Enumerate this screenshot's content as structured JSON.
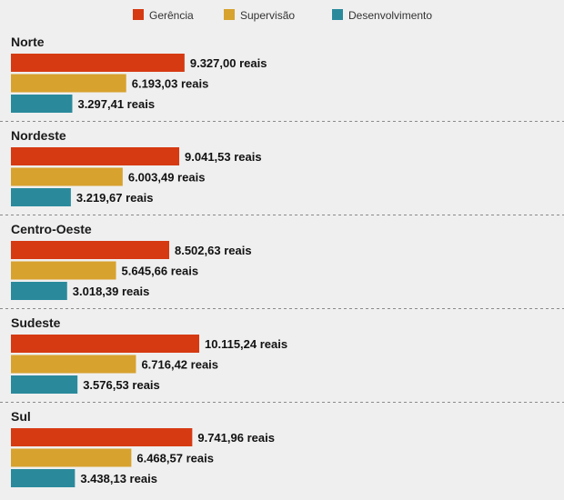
{
  "chart_data": {
    "type": "bar",
    "orientation": "horizontal",
    "title": "",
    "legend_position": "top",
    "unit_suffix": "reais",
    "series": [
      {
        "name": "Gerência",
        "color": "#d63a12"
      },
      {
        "name": "Supervisão",
        "color": "#d7a22e"
      },
      {
        "name": "Desenvolvimento",
        "color": "#2a8a9c"
      }
    ],
    "groups": [
      {
        "name": "Norte",
        "values": [
          9327.0,
          6193.03,
          3297.41
        ],
        "labels": [
          "9.327,00 reais",
          "6.193,03 reais",
          "3.297,41 reais"
        ]
      },
      {
        "name": "Nordeste",
        "values": [
          9041.53,
          6003.49,
          3219.67
        ],
        "labels": [
          "9.041,53 reais",
          "6.003,49 reais",
          "3.219,67 reais"
        ]
      },
      {
        "name": "Centro-Oeste",
        "values": [
          8502.63,
          5645.66,
          3018.39
        ],
        "labels": [
          "8.502,63 reais",
          "5.645,66 reais",
          "3.018,39 reais"
        ]
      },
      {
        "name": "Sudeste",
        "values": [
          10115.24,
          6716.42,
          3576.53
        ],
        "labels": [
          "10.115,24 reais",
          "6.716,42 reais",
          "3.576,53 reais"
        ]
      },
      {
        "name": "Sul",
        "values": [
          9741.96,
          6468.57,
          3438.13
        ],
        "labels": [
          "9.741,96 reais",
          "6.468,57 reais",
          "3.438,13 reais"
        ]
      }
    ]
  }
}
